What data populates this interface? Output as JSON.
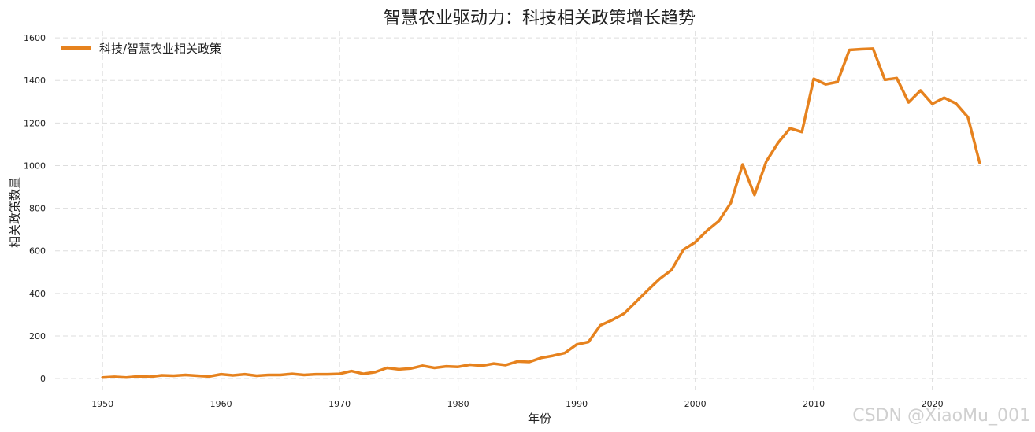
{
  "chart_data": {
    "type": "line",
    "title": "智慧农业驱动力：科技相关政策增长趋势",
    "xlabel": "年份",
    "ylabel": "相关政策数量",
    "xlim": [
      1946,
      2028
    ],
    "ylim": [
      -70,
      1630
    ],
    "xticks": [
      1950,
      1960,
      1970,
      1980,
      1990,
      2000,
      2010,
      2020
    ],
    "yticks": [
      0,
      200,
      400,
      600,
      800,
      1000,
      1200,
      1400,
      1600
    ],
    "grid": true,
    "legend_position": "top-left",
    "series": [
      {
        "name": "科技/智慧农业相关政策",
        "color": "#e6821e",
        "x": [
          1950,
          1951,
          1952,
          1953,
          1954,
          1955,
          1956,
          1957,
          1958,
          1959,
          1960,
          1961,
          1962,
          1963,
          1964,
          1965,
          1966,
          1967,
          1968,
          1969,
          1970,
          1971,
          1972,
          1973,
          1974,
          1975,
          1976,
          1977,
          1978,
          1979,
          1980,
          1981,
          1982,
          1983,
          1984,
          1985,
          1986,
          1987,
          1988,
          1989,
          1990,
          1991,
          1992,
          1993,
          1994,
          1995,
          1996,
          1997,
          1998,
          1999,
          2000,
          2001,
          2002,
          2003,
          2004,
          2005,
          2006,
          2007,
          2008,
          2009,
          2010,
          2011,
          2012,
          2013,
          2014,
          2015,
          2016,
          2017,
          2018,
          2019,
          2020,
          2021,
          2022,
          2023,
          2024
        ],
        "y": [
          5,
          8,
          5,
          10,
          8,
          15,
          13,
          17,
          13,
          10,
          20,
          15,
          20,
          13,
          17,
          17,
          22,
          17,
          20,
          20,
          22,
          35,
          22,
          30,
          50,
          43,
          47,
          60,
          50,
          57,
          55,
          65,
          60,
          70,
          63,
          80,
          78,
          97,
          107,
          120,
          160,
          172,
          250,
          275,
          305,
          360,
          415,
          468,
          510,
          605,
          640,
          695,
          740,
          825,
          1005,
          862,
          1020,
          1108,
          1175,
          1158,
          1408,
          1382,
          1393,
          1543,
          1547,
          1549,
          1403,
          1411,
          1297,
          1353,
          1290,
          1319,
          1292,
          1228,
          1013
        ]
      }
    ]
  },
  "watermark": "CSDN @XiaoMu_001"
}
